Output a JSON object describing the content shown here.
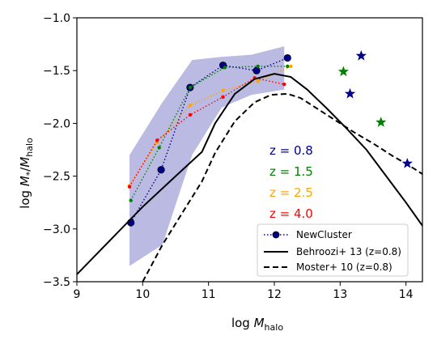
{
  "chart_data": {
    "type": "line",
    "xlabel": "log M_halo",
    "ylabel": "log M*/M_halo",
    "xlim": [
      9,
      14.25
    ],
    "ylim": [
      -3.5,
      -1.0
    ],
    "x_ticks": [
      "9",
      "10",
      "11",
      "12",
      "13",
      "14"
    ],
    "y_ticks": [
      "−3.5",
      "−3.0",
      "−2.5",
      "−2.0",
      "−1.5",
      "−1.0"
    ],
    "grid": false,
    "legend_position": "bottom-right",
    "shaded_band": {
      "color": "#b3b3e0",
      "upper": [
        [
          9.8,
          -2.3
        ],
        [
          10.3,
          -1.8
        ],
        [
          10.75,
          -1.4
        ],
        [
          11.2,
          -1.37
        ],
        [
          11.65,
          -1.35
        ],
        [
          12.15,
          -1.27
        ]
      ],
      "lower": [
        [
          12.15,
          -1.68
        ],
        [
          11.65,
          -1.73
        ],
        [
          11.2,
          -1.85
        ],
        [
          10.75,
          -2.3
        ],
        [
          10.3,
          -3.15
        ],
        [
          9.8,
          -3.35
        ]
      ]
    },
    "series": [
      {
        "name": "NewCluster",
        "color": "#00008b",
        "style": "dotted-markers",
        "marker_size": 6,
        "points": [
          [
            9.82,
            -2.94
          ],
          [
            10.28,
            -2.44
          ],
          [
            10.72,
            -1.66
          ],
          [
            11.22,
            -1.45
          ],
          [
            11.73,
            -1.5
          ],
          [
            12.2,
            -1.38
          ]
        ]
      },
      {
        "color": "#008000",
        "style": "dotted-markers",
        "marker_size": 3,
        "points": [
          [
            9.82,
            -2.73
          ],
          [
            10.25,
            -2.23
          ],
          [
            10.72,
            -1.66
          ],
          [
            11.25,
            -1.47
          ],
          [
            11.75,
            -1.46
          ],
          [
            12.2,
            -1.46
          ]
        ]
      },
      {
        "color": "#ffa500",
        "style": "dotted-markers",
        "marker_size": 3,
        "points": [
          [
            9.8,
            -2.59
          ],
          [
            10.22,
            -2.18
          ],
          [
            10.72,
            -1.83
          ],
          [
            11.22,
            -1.69
          ],
          [
            11.75,
            -1.6
          ],
          [
            12.25,
            -1.46
          ]
        ]
      },
      {
        "color": "#ff0000",
        "style": "dotted-markers",
        "marker_size": 3,
        "points": [
          [
            9.8,
            -2.6
          ],
          [
            10.22,
            -2.16
          ],
          [
            10.72,
            -1.92
          ],
          [
            11.22,
            -1.75
          ],
          [
            11.7,
            -1.57
          ],
          [
            12.15,
            -1.63
          ]
        ]
      },
      {
        "name": "Behroozi+ 13 (z=0.8)",
        "color": "#000000",
        "style": "solid",
        "points": [
          [
            9.0,
            -3.43
          ],
          [
            9.5,
            -3.11
          ],
          [
            10.0,
            -2.79
          ],
          [
            10.5,
            -2.5
          ],
          [
            10.9,
            -2.27
          ],
          [
            11.1,
            -2.0
          ],
          [
            11.4,
            -1.72
          ],
          [
            11.7,
            -1.58
          ],
          [
            12.0,
            -1.53
          ],
          [
            12.25,
            -1.56
          ],
          [
            12.5,
            -1.68
          ],
          [
            12.8,
            -1.86
          ],
          [
            13.1,
            -2.05
          ],
          [
            13.4,
            -2.25
          ],
          [
            13.7,
            -2.5
          ],
          [
            14.0,
            -2.75
          ],
          [
            14.25,
            -2.97
          ]
        ]
      },
      {
        "name": "Moster+ 10 (z=0.8)",
        "color": "#000000",
        "style": "dashed",
        "points": [
          [
            10.0,
            -3.5
          ],
          [
            10.3,
            -3.15
          ],
          [
            10.6,
            -2.85
          ],
          [
            10.9,
            -2.55
          ],
          [
            11.1,
            -2.28
          ],
          [
            11.4,
            -1.98
          ],
          [
            11.7,
            -1.8
          ],
          [
            11.95,
            -1.73
          ],
          [
            12.2,
            -1.72
          ],
          [
            12.4,
            -1.76
          ],
          [
            12.6,
            -1.84
          ],
          [
            12.9,
            -1.96
          ],
          [
            13.2,
            -2.08
          ],
          [
            13.5,
            -2.19
          ],
          [
            13.8,
            -2.31
          ],
          [
            14.05,
            -2.4
          ],
          [
            14.25,
            -2.48
          ]
        ]
      }
    ],
    "stars": [
      {
        "x": 13.05,
        "y": -1.51,
        "color": "#008000"
      },
      {
        "x": 13.32,
        "y": -1.36,
        "color": "#00008b"
      },
      {
        "x": 13.15,
        "y": -1.72,
        "color": "#00008b"
      },
      {
        "x": 13.62,
        "y": -1.99,
        "color": "#008000"
      },
      {
        "x": 14.02,
        "y": -2.38,
        "color": "#00008b"
      }
    ],
    "annotations": [
      {
        "text": "z = 0.8",
        "color": "#00008b"
      },
      {
        "text": "z = 1.5",
        "color": "#008000"
      },
      {
        "text": "z = 2.5",
        "color": "#ffa500"
      },
      {
        "text": "z = 4.0",
        "color": "#ff0000"
      }
    ]
  }
}
